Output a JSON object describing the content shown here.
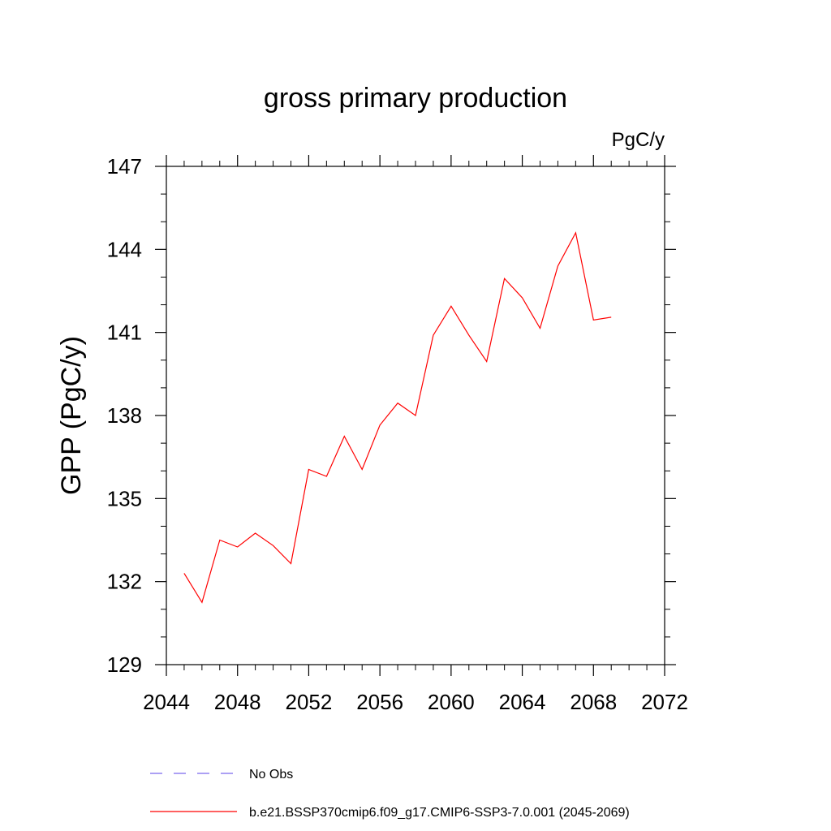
{
  "chart_data": {
    "type": "line",
    "title": "gross primary production",
    "units": "PgC/y",
    "ylabel": "GPP  (PgC/y)",
    "xlabel": "",
    "xlim": [
      2044,
      2072
    ],
    "ylim": [
      129,
      147
    ],
    "x_ticks": [
      2044,
      2048,
      2052,
      2056,
      2060,
      2064,
      2068,
      2072
    ],
    "y_ticks": [
      129,
      132,
      135,
      138,
      141,
      144,
      147
    ],
    "grid": false,
    "legend_position": "bottom",
    "series": [
      {
        "name": "b.e21.BSSP370cmip6.f09_g17.CMIP6-SSP3-7.0.001 (2045-2069)",
        "color": "#ff0000",
        "dash": "solid",
        "x": [
          2045,
          2046,
          2047,
          2048,
          2049,
          2050,
          2051,
          2052,
          2053,
          2054,
          2055,
          2056,
          2057,
          2058,
          2059,
          2060,
          2061,
          2062,
          2063,
          2064,
          2065,
          2066,
          2067,
          2068,
          2069
        ],
        "y": [
          132.3,
          131.25,
          133.5,
          133.25,
          133.75,
          133.3,
          132.65,
          136.05,
          135.8,
          137.25,
          136.05,
          137.65,
          138.45,
          138.0,
          140.9,
          141.95,
          140.9,
          139.95,
          142.95,
          142.25,
          141.15,
          143.4,
          144.6,
          141.45,
          141.55
        ]
      },
      {
        "name": "No Obs",
        "color": "#7b68ee",
        "dash": "dashed",
        "x": [],
        "y": []
      }
    ]
  }
}
